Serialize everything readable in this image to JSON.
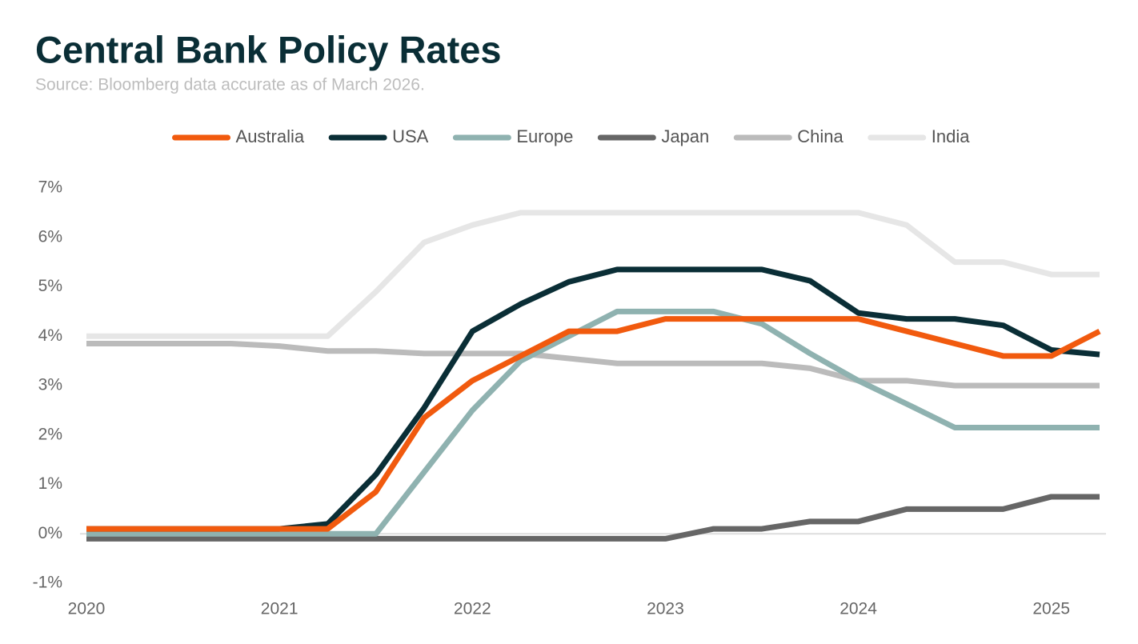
{
  "chart_data": {
    "type": "line",
    "title": "Central Bank Policy Rates",
    "subtitle": "Source: Bloomberg data accurate as of March 2026.",
    "x": [
      2020,
      2020.25,
      2020.5,
      2020.75,
      2021,
      2021.25,
      2021.5,
      2021.75,
      2022,
      2022.25,
      2022.5,
      2022.75,
      2023,
      2023.25,
      2023.5,
      2023.75,
      2024,
      2024.25,
      2024.5,
      2024.75,
      2025,
      2025.25
    ],
    "xlim": [
      2020,
      2025.25
    ],
    "xticks": [
      2020,
      2021,
      2022,
      2023,
      2024,
      2025
    ],
    "ylim": [
      -1,
      7
    ],
    "yticks": [
      {
        "value": -1,
        "label": "-1%"
      },
      {
        "value": 0,
        "label": "0%"
      },
      {
        "value": 1,
        "label": "1%"
      },
      {
        "value": 2,
        "label": "2%"
      },
      {
        "value": 3,
        "label": "3%"
      },
      {
        "value": 4,
        "label": "4%"
      },
      {
        "value": 5,
        "label": "5%"
      },
      {
        "value": 6,
        "label": "6%"
      },
      {
        "value": 7,
        "label": "7%"
      }
    ],
    "legend": "top",
    "series": [
      {
        "name": "Australia",
        "color": "#f15a0e",
        "values": [
          0.1,
          0.1,
          0.1,
          0.1,
          0.1,
          0.1,
          0.85,
          2.35,
          3.1,
          3.6,
          4.1,
          4.1,
          4.35,
          4.35,
          4.35,
          4.35,
          4.35,
          4.1,
          3.85,
          3.6,
          3.6,
          4.1
        ]
      },
      {
        "name": "USA",
        "color": "#0a2e36",
        "values": [
          0.1,
          0.1,
          0.1,
          0.1,
          0.1,
          0.2,
          1.2,
          2.55,
          4.1,
          4.65,
          5.1,
          5.35,
          5.35,
          5.35,
          5.35,
          5.12,
          4.47,
          4.35,
          4.35,
          4.22,
          3.72,
          3.63
        ]
      },
      {
        "name": "Europe",
        "color": "#8fb2b0",
        "values": [
          0,
          0,
          0,
          0,
          0,
          0,
          0,
          1.25,
          2.5,
          3.5,
          4,
          4.5,
          4.5,
          4.5,
          4.25,
          3.65,
          3.1,
          2.63,
          2.15,
          2.15,
          2.15,
          2.15
        ]
      },
      {
        "name": "Japan",
        "color": "#666666",
        "values": [
          -0.1,
          -0.1,
          -0.1,
          -0.1,
          -0.1,
          -0.1,
          -0.1,
          -0.1,
          -0.1,
          -0.1,
          -0.1,
          -0.1,
          -0.1,
          0.1,
          0.1,
          0.25,
          0.25,
          0.5,
          0.5,
          0.5,
          0.75,
          0.75
        ]
      },
      {
        "name": "China",
        "color": "#bbbbbb",
        "values": [
          3.85,
          3.85,
          3.85,
          3.85,
          3.8,
          3.7,
          3.7,
          3.65,
          3.65,
          3.65,
          3.55,
          3.45,
          3.45,
          3.45,
          3.45,
          3.35,
          3.1,
          3.1,
          3.0,
          3.0,
          3.0,
          3.0
        ]
      },
      {
        "name": "India",
        "color": "#e6e6e6",
        "values": [
          4,
          4,
          4,
          4,
          4,
          4,
          4.9,
          5.9,
          6.25,
          6.5,
          6.5,
          6.5,
          6.5,
          6.5,
          6.5,
          6.5,
          6.5,
          6.25,
          5.5,
          5.5,
          5.25,
          5.25
        ]
      }
    ]
  }
}
